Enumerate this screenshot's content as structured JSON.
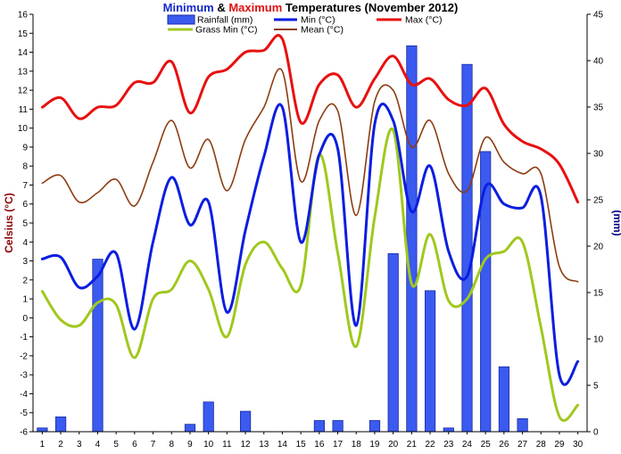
{
  "chart_data": {
    "type": "line",
    "title": {
      "part1": "Minimum",
      "part2": " & ",
      "part3": "Maximum",
      "part4": " Temperatures (November 2012)"
    },
    "colors": {
      "title_min": "#1428c8",
      "title_max": "#e01010",
      "rainfall": "#3a5af0",
      "rainfall_edge": "#1a2aa0",
      "min": "#0b1ee0",
      "max": "#e81010",
      "grass_min": "#a0c81e",
      "mean": "#8c3c10",
      "left_axis_label": "#8b0000",
      "right_axis_label": "#000080",
      "right_ticks": "#000080"
    },
    "ylabel_left": "Celsius (°C)",
    "ylabel_right": "(mm)",
    "xlabel": "",
    "x": [
      1,
      2,
      3,
      4,
      5,
      6,
      7,
      8,
      9,
      10,
      11,
      12,
      13,
      14,
      15,
      16,
      17,
      18,
      19,
      20,
      21,
      22,
      23,
      24,
      25,
      26,
      27,
      28,
      29,
      30
    ],
    "x_tick_labels": [
      "1",
      "2",
      "3",
      "4",
      "5",
      "6",
      "7",
      "8",
      "9",
      "10",
      "11",
      "12",
      "13",
      "14",
      "15",
      "16",
      "17",
      "18",
      "19",
      "20",
      "21",
      "22",
      "23",
      "24",
      "25",
      "26",
      "27",
      "28",
      "29",
      "30"
    ],
    "ylim_left": [
      -6,
      16
    ],
    "left_ticks": [
      "-6",
      "-5",
      "-4",
      "-3",
      "-2",
      "-1",
      "0",
      "1",
      "2",
      "3",
      "4",
      "5",
      "6",
      "7",
      "8",
      "9",
      "10",
      "11",
      "12",
      "13",
      "14",
      "15",
      "16"
    ],
    "ylim_right": [
      0,
      45
    ],
    "right_ticks": [
      "0",
      "5",
      "10",
      "15",
      "20",
      "25",
      "30",
      "35",
      "40",
      "45"
    ],
    "grid": false,
    "legend_placement": "top",
    "series": [
      {
        "key": "rainfall",
        "name": "Rainfall (mm)",
        "kind": "bar",
        "axis": "right",
        "values": [
          0.4,
          1.6,
          0,
          18.6,
          0,
          0,
          0,
          0,
          0.8,
          3.2,
          0,
          2.2,
          0,
          0,
          0,
          1.2,
          1.2,
          0,
          1.2,
          19.2,
          41.6,
          15.2,
          0.4,
          39.6,
          30.2,
          7,
          1.4,
          0,
          0,
          0
        ]
      },
      {
        "key": "min",
        "name": "Min (°C)",
        "kind": "line",
        "axis": "left",
        "values": [
          3.1,
          3.2,
          1.6,
          2.2,
          3.4,
          -0.6,
          4.0,
          7.4,
          4.9,
          6.1,
          0.3,
          4.6,
          8.5,
          11.1,
          4.0,
          8.6,
          8.9,
          -0.4,
          10.2,
          10.4,
          5.6,
          8.0,
          3.5,
          2.2,
          6.9,
          6.0,
          5.8,
          6.4,
          -3.0,
          -2.3
        ]
      },
      {
        "key": "max",
        "name": "Max (°C)",
        "kind": "line",
        "axis": "left",
        "values": [
          11.1,
          11.6,
          10.5,
          11.1,
          11.2,
          12.4,
          12.4,
          13.5,
          10.8,
          12.7,
          13.1,
          14.0,
          14.1,
          14.7,
          10.3,
          12.3,
          12.8,
          11.1,
          12.6,
          13.8,
          12.3,
          12.6,
          11.5,
          11.2,
          12.1,
          10.2,
          9.3,
          8.9,
          8.1,
          6.1
        ]
      },
      {
        "key": "mean",
        "name": "Mean (°C)",
        "kind": "line",
        "axis": "left",
        "values": [
          7.1,
          7.5,
          6.1,
          6.6,
          7.3,
          5.9,
          8.2,
          10.4,
          7.9,
          9.4,
          6.7,
          9.4,
          11.1,
          13.0,
          7.2,
          10.4,
          10.9,
          5.4,
          11.4,
          12.0,
          9.0,
          10.4,
          7.6,
          6.7,
          9.5,
          8.2,
          7.6,
          7.6,
          2.7,
          1.9
        ]
      },
      {
        "key": "grass_min",
        "name": "Grass Min (°C)",
        "kind": "line",
        "axis": "left",
        "values": [
          1.4,
          -0.1,
          -0.4,
          0.8,
          0.7,
          -2.1,
          1.0,
          1.5,
          3.0,
          1.5,
          -1.0,
          2.8,
          4.0,
          2.6,
          1.7,
          8.6,
          3.4,
          -1.5,
          5.3,
          9.9,
          1.8,
          4.4,
          0.9,
          1.0,
          3.1,
          3.5,
          4.0,
          -0.5,
          -5.2,
          -4.6
        ]
      }
    ]
  }
}
